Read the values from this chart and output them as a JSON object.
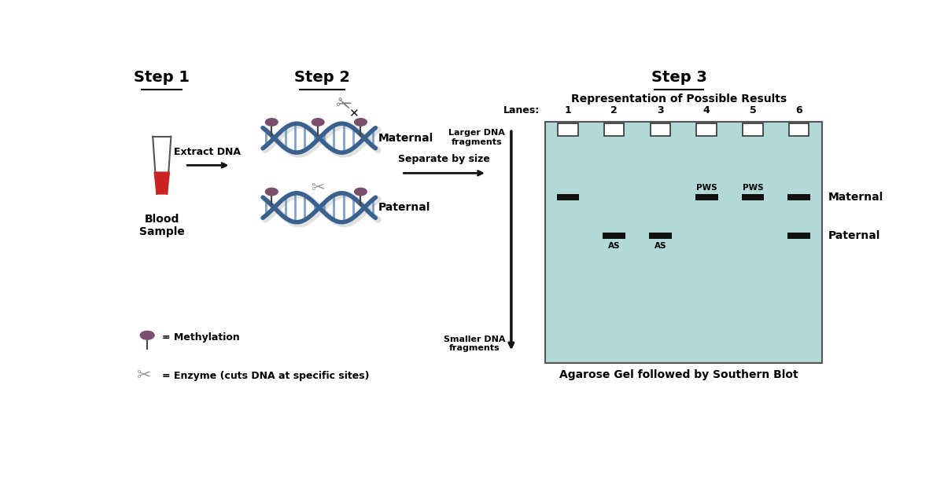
{
  "background_color": "#ffffff",
  "step1_title": "Step 1",
  "step2_title": "Step 2",
  "step3_title": "Step 3",
  "step3_subtitle": "Representation of Possible Results",
  "step3_bottom_label": "Agarose Gel followed by Southern Blot",
  "gel_bg_color": "#b2d8d8",
  "gel_border_color": "#555555",
  "lane_labels": [
    "1",
    "2",
    "3",
    "4",
    "5",
    "6"
  ],
  "lanes_label": "Lanes:",
  "well_color": "#ffffff",
  "well_border": "#333333",
  "band_color": "#111111",
  "maternal_label": "Maternal",
  "paternal_label": "Paternal",
  "larger_label": "Larger DNA\nfragments",
  "smaller_label": "Smaller DNA\nfragments",
  "separate_label": "Separate by size",
  "extract_label": "Extract DNA",
  "blood_label": "Blood\nSample",
  "maternal_dna_label": "Maternal",
  "paternal_dna_label": "Paternal",
  "methylation_label": "= Methylation",
  "enzyme_label": "= Enzyme (cuts DNA at specific sites)",
  "pws_label": "PWS",
  "as_label": "AS",
  "title_fontsize": 14,
  "label_fontsize": 10,
  "small_fontsize": 9,
  "helix_color": "#3a6090",
  "rung_color": "#6a90c0",
  "shadow_color": "#aaaaaa",
  "methyl_color": "#7a4f6d",
  "scissors_color": "#777777",
  "arrow_color": "#111111",
  "tube_blood_color": "#cc2222",
  "tube_outline_color": "#555555"
}
